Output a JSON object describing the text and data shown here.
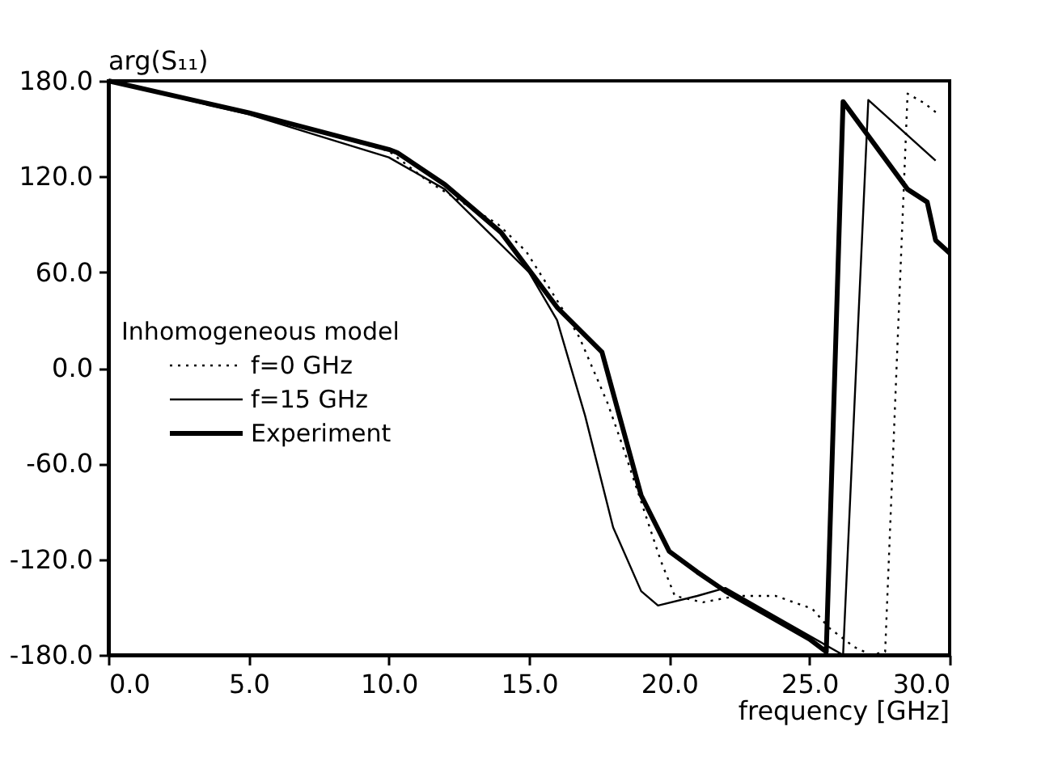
{
  "chart_data": {
    "type": "line",
    "xlabel": "frequency [GHz]",
    "ylabel": "arg(S₁₁)",
    "legend_title": "Inhomogeneous model",
    "legend": "left",
    "grid": false,
    "marker": "none",
    "xlim": [
      0,
      30
    ],
    "ylim": [
      -180,
      180
    ],
    "xticks": [
      {
        "value": 0,
        "label": "0.0"
      },
      {
        "value": 5,
        "label": "5.0"
      },
      {
        "value": 10,
        "label": "10.0"
      },
      {
        "value": 15,
        "label": "15.0"
      },
      {
        "value": 20,
        "label": "20.0"
      },
      {
        "value": 25,
        "label": "25.0"
      },
      {
        "value": 30,
        "label": "30.0"
      }
    ],
    "yticks": [
      {
        "value": -180,
        "label": "-180.0"
      },
      {
        "value": -120,
        "label": "-120.0"
      },
      {
        "value": -60,
        "label": "-60.0"
      },
      {
        "value": 0,
        "label": "0.0"
      },
      {
        "value": 60,
        "label": "60.0"
      },
      {
        "value": 120,
        "label": "120.0"
      },
      {
        "value": 180,
        "label": "180.0"
      }
    ],
    "series": [
      {
        "name": "f=0 GHz",
        "color": "#000000",
        "line_style": "dotted",
        "x": [
          0,
          5,
          10,
          11.4,
          13.9,
          14.9,
          16.3,
          16.8,
          17.8,
          18.3,
          19.0,
          19.7,
          20.2,
          21.2,
          22.4,
          23.8,
          25.1,
          25.7,
          26.6,
          27.2,
          27.7,
          28.5,
          29.1,
          29.6
        ],
        "values": [
          180,
          160,
          136,
          117,
          90,
          73,
          34,
          19,
          -22,
          -47,
          -84,
          -121,
          -143,
          -147,
          -143,
          -143,
          -151,
          -163,
          -175,
          -180,
          -178,
          172,
          166,
          159
        ]
      },
      {
        "name": "f=15 GHz",
        "color": "#000000",
        "line_style": "solid",
        "x": [
          0,
          5,
          10,
          12,
          15,
          16,
          17,
          18,
          19,
          19.6,
          21,
          22,
          25,
          26.2,
          27.1,
          29.5
        ],
        "values": [
          180,
          159,
          132,
          112,
          60,
          30,
          -30,
          -100,
          -140,
          -149,
          -143,
          -138,
          -168,
          -180,
          168,
          130
        ]
      },
      {
        "name": "Experiment",
        "color": "#000000",
        "line_style": "solid",
        "x": [
          0,
          5,
          10,
          10.3,
          12,
          14,
          16,
          17.6,
          19,
          20,
          21,
          22,
          25,
          25.6,
          26.2,
          28.5,
          29.2,
          29.5,
          30
        ],
        "values": [
          180,
          160,
          137,
          135,
          115,
          85,
          38,
          10,
          -80,
          -115,
          -128,
          -140,
          -170,
          -178,
          167,
          112,
          104,
          80,
          72
        ]
      }
    ]
  }
}
